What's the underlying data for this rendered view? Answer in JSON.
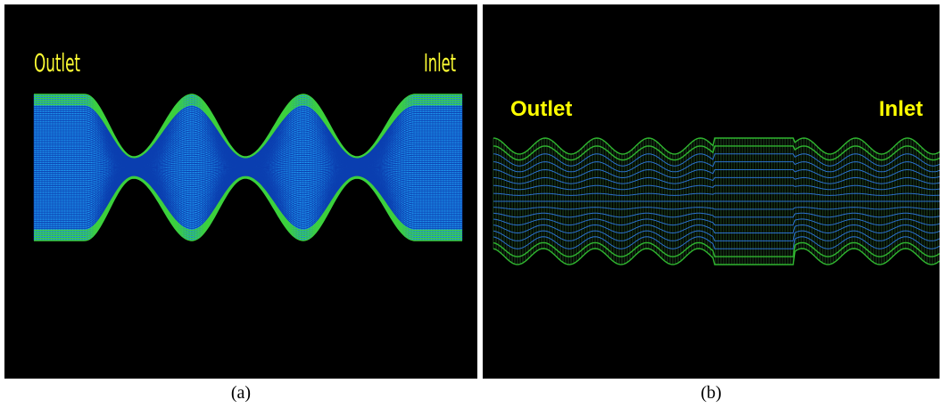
{
  "panel_a": {
    "outlet_label": "Outlet",
    "inlet_label": "Inlet",
    "caption": "(a)"
  },
  "panel_b": {
    "outlet_label": "Outlet",
    "inlet_label": "Inlet",
    "caption": "(b)"
  }
}
